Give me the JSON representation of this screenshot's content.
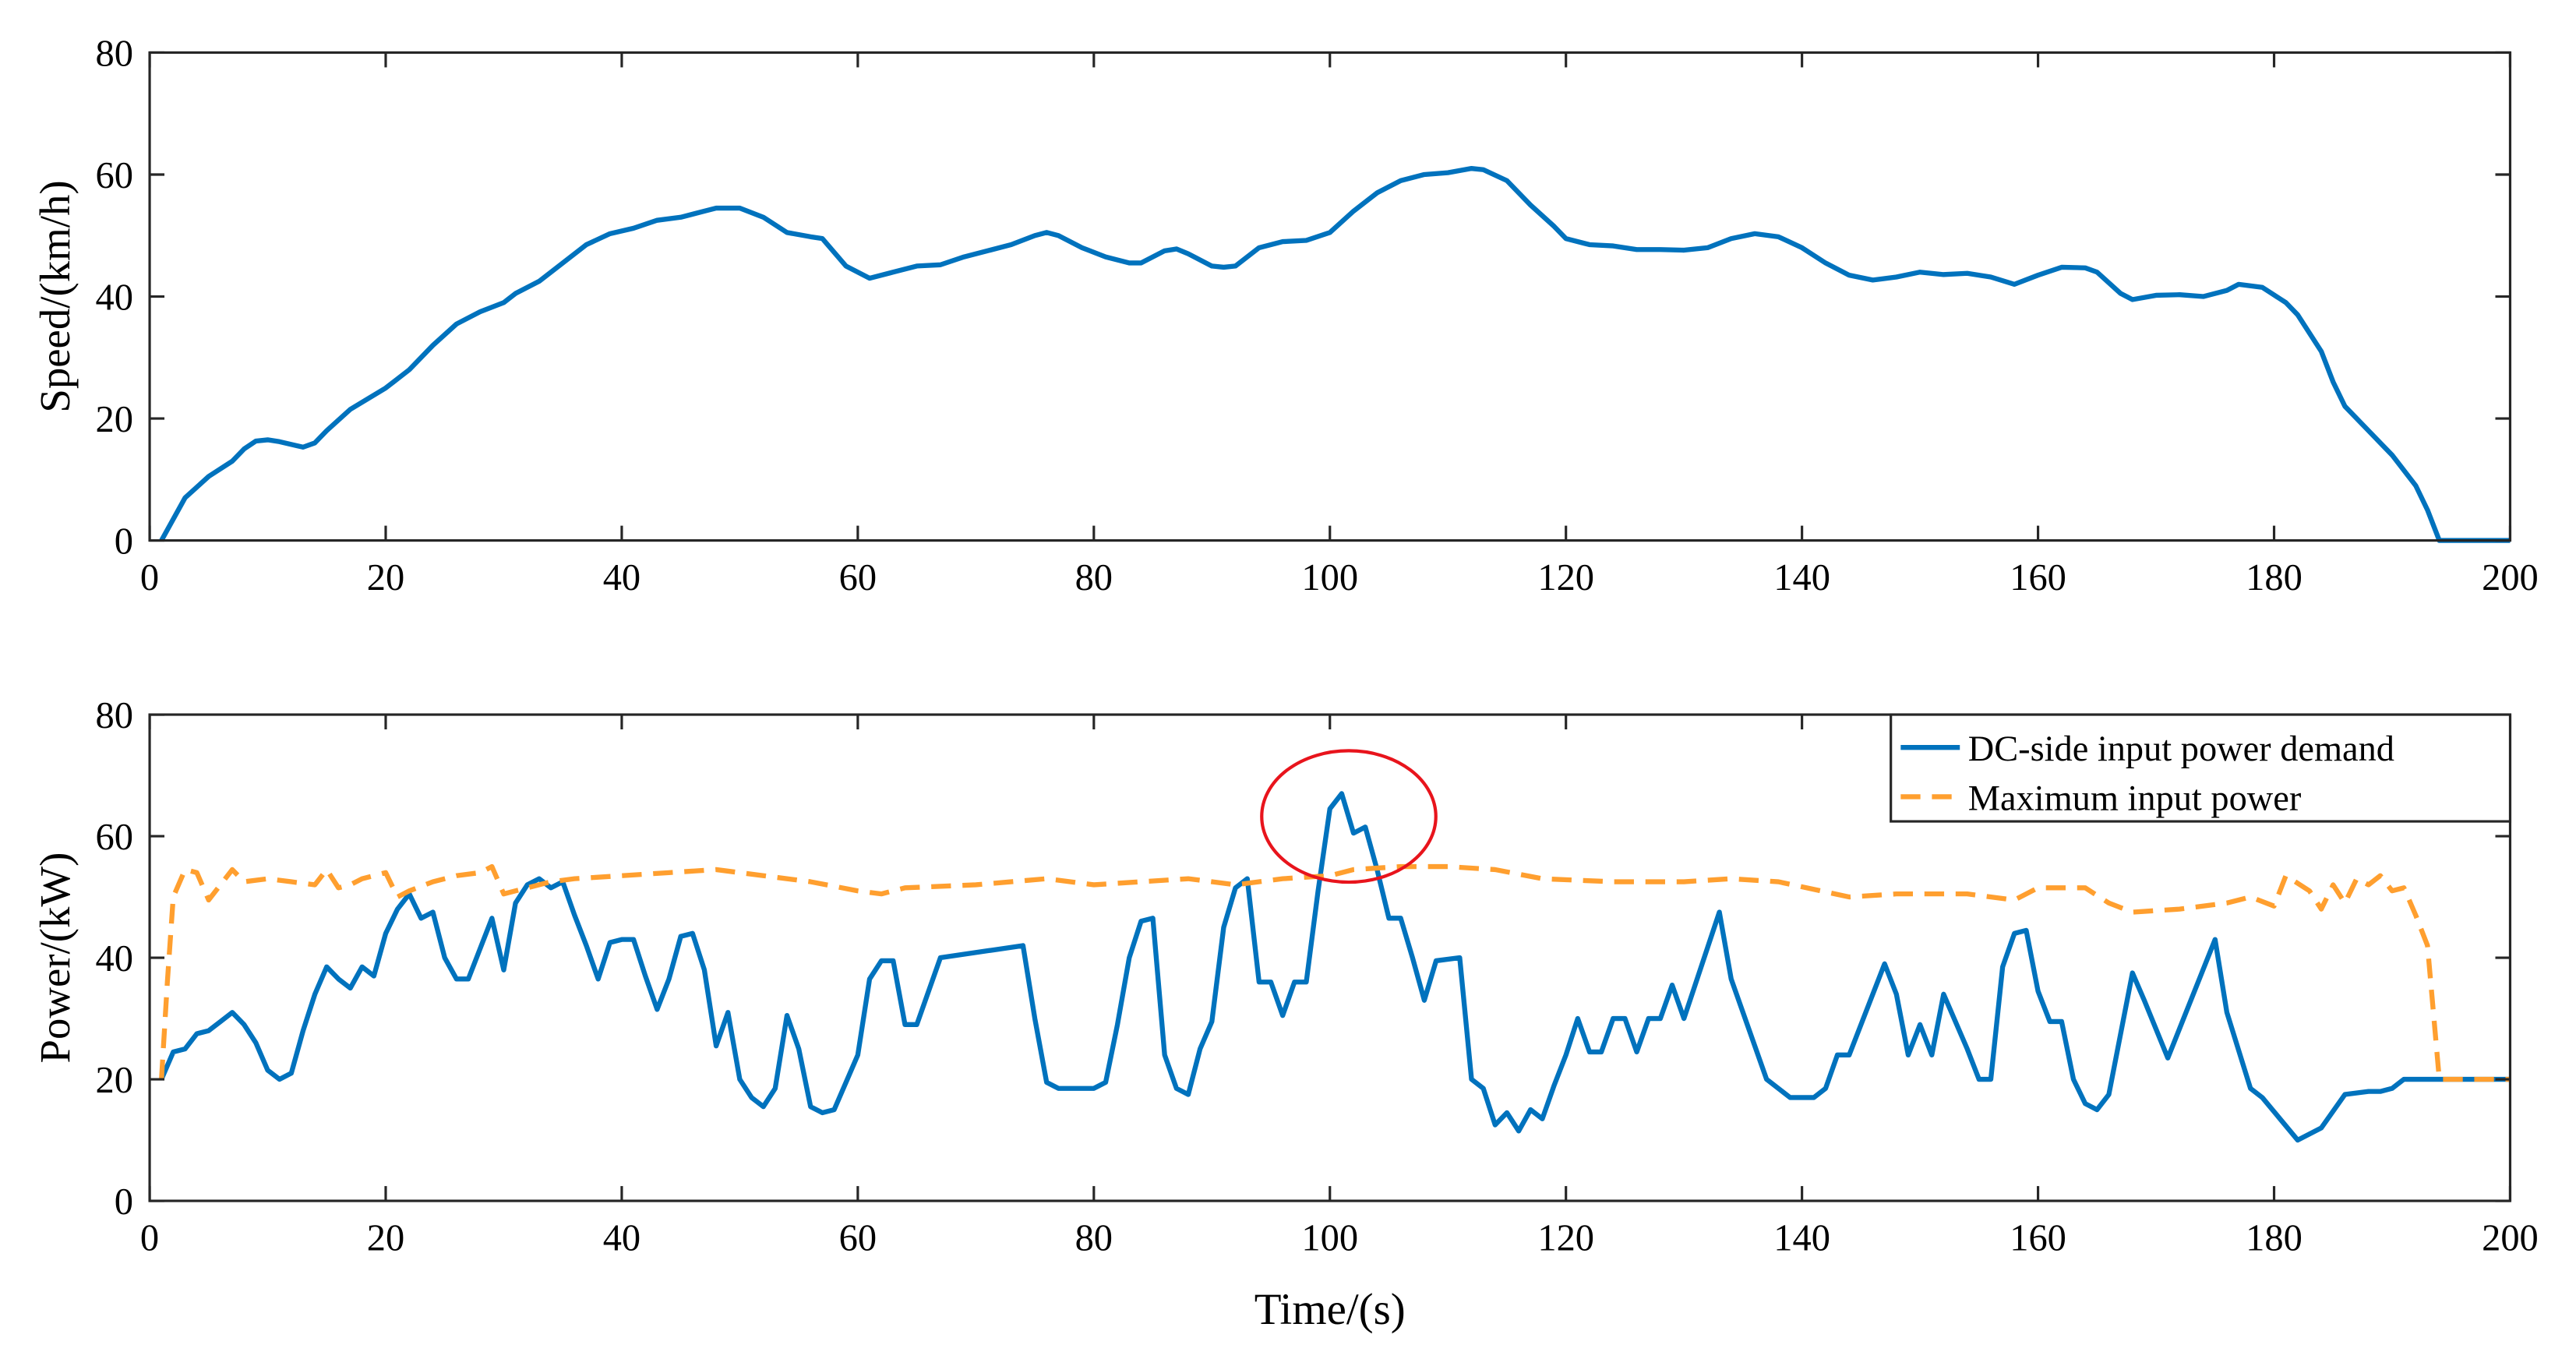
{
  "chart_data": [
    {
      "type": "line",
      "ylabel": "Speed/(km/h)",
      "xlim": [
        0,
        200
      ],
      "ylim": [
        0,
        80
      ],
      "xticks": [
        0,
        20,
        40,
        60,
        80,
        100,
        120,
        140,
        160,
        180,
        200
      ],
      "yticks": [
        0,
        20,
        40,
        60,
        80
      ],
      "series": [
        {
          "color": "#0072bd",
          "linestyle": "solid",
          "x": [
            1,
            3,
            5,
            7,
            8,
            9,
            10,
            11,
            13,
            14,
            15,
            17,
            20,
            22,
            24,
            26,
            28,
            30,
            31,
            33,
            35,
            37,
            39,
            41,
            43,
            45,
            47,
            48,
            50,
            52,
            54,
            56,
            57,
            59,
            61,
            63,
            65,
            67,
            69,
            71,
            73,
            75,
            76,
            77,
            79,
            81,
            83,
            84,
            86,
            87,
            88,
            90,
            91,
            92,
            94,
            96,
            98,
            100,
            102,
            104,
            106,
            108,
            110,
            112,
            113,
            115,
            117,
            119,
            120,
            122,
            124,
            126,
            128,
            130,
            132,
            134,
            136,
            138,
            140,
            142,
            144,
            146,
            148,
            150,
            152,
            154,
            156,
            158,
            160,
            162,
            164,
            165,
            167,
            168,
            170,
            172,
            174,
            176,
            177,
            179,
            181,
            182,
            184,
            185,
            186,
            188,
            190,
            192,
            193,
            194,
            200
          ],
          "values": [
            0,
            7,
            10.5,
            13,
            15,
            16.3,
            16.5,
            16.2,
            15.3,
            16,
            18,
            21.5,
            25,
            28,
            32,
            35.5,
            37.5,
            39,
            40.5,
            42.5,
            45.5,
            48.5,
            50.3,
            51.2,
            52.5,
            53,
            54,
            54.5,
            54.5,
            53,
            50.5,
            49.8,
            49.5,
            45,
            43,
            44,
            45,
            45.2,
            46.5,
            47.5,
            48.5,
            50,
            50.5,
            50,
            48,
            46.5,
            45.5,
            45.5,
            47.5,
            47.8,
            47,
            45,
            44.8,
            45,
            48,
            49,
            49.2,
            50.5,
            54,
            57,
            59,
            60,
            60.3,
            61,
            60.8,
            59,
            55,
            51.5,
            49.5,
            48.5,
            48.3,
            47.7,
            47.7,
            47.6,
            48,
            49.5,
            50.3,
            49.8,
            48,
            45.5,
            43.5,
            42.7,
            43.2,
            44,
            43.6,
            43.8,
            43.2,
            42,
            43.5,
            44.8,
            44.7,
            44,
            40.5,
            39.5,
            40.2,
            40.3,
            40,
            41,
            42,
            41.5,
            39,
            37,
            31,
            26,
            22,
            18,
            14,
            9,
            5,
            0,
            0
          ]
        }
      ]
    },
    {
      "type": "line",
      "xlabel": "Time/(s)",
      "ylabel": "Power/(kW)",
      "xlim": [
        0,
        200
      ],
      "ylim": [
        0,
        80
      ],
      "xticks": [
        0,
        20,
        40,
        60,
        80,
        100,
        120,
        140,
        160,
        180,
        200
      ],
      "yticks": [
        0,
        20,
        40,
        60,
        80
      ],
      "legend": "upper right",
      "series": [
        {
          "name": "DC-side input power demand",
          "color": "#0072bd",
          "linestyle": "solid",
          "x": [
            1,
            2,
            3,
            4,
            5,
            6,
            7,
            8,
            9,
            10,
            11,
            12,
            13,
            14,
            15,
            16,
            17,
            18,
            19,
            20,
            21,
            22,
            23,
            24,
            25,
            26,
            27,
            28,
            29,
            30,
            31,
            32,
            33,
            34,
            35,
            36,
            37,
            38,
            39,
            40,
            41,
            42,
            43,
            44,
            45,
            46,
            47,
            48,
            49,
            50,
            51,
            52,
            53,
            54,
            55,
            56,
            57,
            58,
            59,
            60,
            61,
            62,
            63,
            64,
            65,
            66,
            67,
            74,
            75,
            76,
            77,
            80,
            81,
            82,
            83,
            84,
            85,
            86,
            87,
            88,
            89,
            90,
            91,
            92,
            93,
            94,
            95,
            96,
            97,
            98,
            99,
            100,
            101,
            102,
            103,
            104,
            105,
            106,
            107,
            108,
            109,
            111,
            112,
            113,
            114,
            115,
            116,
            117,
            118,
            119,
            120,
            121,
            122,
            123,
            124,
            125,
            126,
            127,
            128,
            129,
            130,
            133,
            134,
            137,
            139,
            141,
            142,
            143,
            144,
            147,
            148,
            149,
            150,
            151,
            152,
            154,
            155,
            156,
            157,
            158,
            159,
            160,
            161,
            162,
            163,
            164,
            165,
            166,
            167,
            168,
            169,
            171,
            175,
            176,
            178,
            179,
            182,
            184,
            186,
            188,
            189,
            190,
            191,
            200
          ],
          "values": [
            20,
            24.5,
            25,
            27.5,
            28,
            29.5,
            31,
            29,
            26,
            21.5,
            20,
            21,
            28,
            34,
            38.5,
            36.5,
            35,
            38.5,
            37,
            44,
            48,
            50.5,
            46.5,
            47.5,
            40,
            36.5,
            36.5,
            41.5,
            46.5,
            38,
            49,
            52,
            53,
            51.5,
            52.5,
            47,
            42,
            36.5,
            42.5,
            43,
            43,
            37,
            31.5,
            36.5,
            43.5,
            44,
            38,
            25.5,
            31,
            20,
            17,
            15.5,
            18.5,
            30.5,
            25,
            15.5,
            14.5,
            15,
            19.5,
            24,
            36.5,
            39.5,
            39.5,
            29,
            29,
            34.5,
            40,
            42,
            30,
            19.5,
            18.5,
            18.5,
            19.5,
            29,
            40,
            46,
            46.5,
            24,
            18.5,
            17.5,
            25,
            29.5,
            45,
            51.5,
            53,
            36,
            36,
            30.5,
            36,
            36,
            51,
            64.5,
            67,
            60.5,
            61.5,
            54.5,
            46.5,
            46.5,
            40,
            33,
            39.5,
            40,
            20,
            18.5,
            12.5,
            14.5,
            11.5,
            15,
            13.5,
            19,
            24,
            30,
            24.5,
            24.5,
            30,
            30,
            24.5,
            30,
            30,
            35.5,
            30,
            47.5,
            36.5,
            20,
            17,
            17,
            18.5,
            24,
            24,
            39,
            34,
            24,
            29,
            24,
            34,
            25,
            20,
            20,
            38.5,
            44,
            44.5,
            34.5,
            29.5,
            29.5,
            20,
            16,
            15,
            17.5,
            27.5,
            37.5,
            33,
            23.5,
            43,
            31,
            18.5,
            17,
            10,
            12,
            17.5,
            18,
            18,
            18.5,
            20,
            20
          ]
        },
        {
          "name": "Maximum input power",
          "color": "#ff9f2f",
          "linestyle": "dashed",
          "x": [
            1,
            1.5,
            2,
            3,
            4,
            5,
            6,
            7,
            8,
            10,
            12,
            14,
            15,
            16,
            17,
            18,
            19,
            20,
            21,
            22,
            24,
            26,
            28,
            29,
            30,
            32,
            34,
            36,
            40,
            44,
            48,
            52,
            56,
            60,
            62,
            64,
            70,
            76,
            80,
            84,
            88,
            92,
            96,
            100,
            102,
            106,
            110,
            114,
            118,
            124,
            130,
            134,
            138,
            144,
            148,
            154,
            158,
            160,
            164,
            166,
            168,
            172,
            176,
            178,
            180,
            181,
            183,
            184,
            185,
            186,
            187,
            188,
            189,
            190,
            191,
            192,
            193,
            194,
            200
          ],
          "values": [
            20,
            36,
            50,
            54.5,
            54,
            49.5,
            52,
            54.5,
            52.5,
            53,
            52.5,
            52,
            54.5,
            51.5,
            52,
            53,
            53.5,
            54,
            50,
            51,
            52.5,
            53.5,
            54,
            55,
            50.5,
            51.5,
            52.5,
            53,
            53.5,
            54,
            54.5,
            53.5,
            52.5,
            51,
            50.5,
            51.5,
            52,
            53,
            52,
            52.5,
            53,
            52,
            53,
            53.5,
            54.5,
            55,
            55,
            54.5,
            53,
            52.5,
            52.5,
            53,
            52.5,
            50,
            50.5,
            50.5,
            49.5,
            51.5,
            51.5,
            49,
            47.5,
            48,
            49,
            50,
            48.5,
            53.5,
            51,
            48,
            52,
            49,
            53,
            52,
            53.5,
            51,
            51.5,
            47,
            42,
            20,
            20
          ]
        }
      ]
    }
  ]
}
